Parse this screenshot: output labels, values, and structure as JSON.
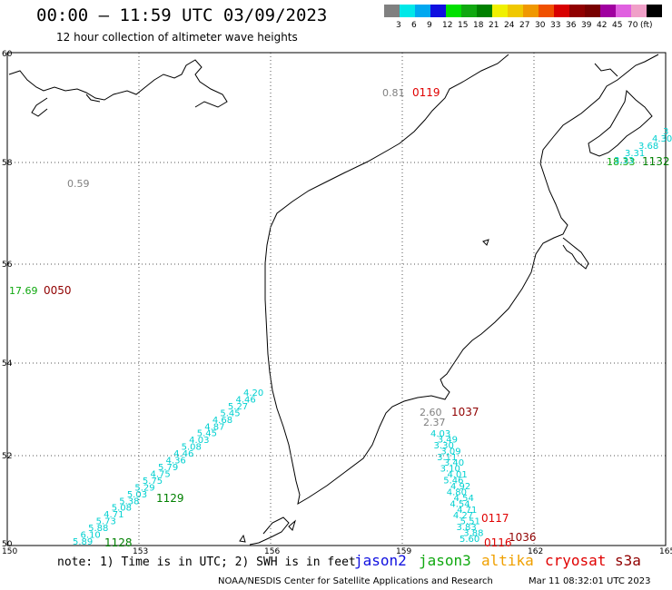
{
  "header": {
    "title": "00:00 – 11:59 UTC 03/09/2023",
    "subtitle": "12 hour collection of altimeter wave heights"
  },
  "legend": {
    "colors": [
      "#808080",
      "#00e8e8",
      "#00a8f0",
      "#1010e0",
      "#00e000",
      "#10a810",
      "#008000",
      "#f0f000",
      "#f0c800",
      "#f09800",
      "#f05000",
      "#d80000",
      "#900000",
      "#780000",
      "#a000a0",
      "#e060e0",
      "#f0a0c8",
      "#000000"
    ],
    "labels": [
      "3",
      "6",
      "9",
      "12",
      "15",
      "18",
      "21",
      "24",
      "27",
      "30",
      "33",
      "36",
      "39",
      "42",
      "45",
      "70",
      "(ft)"
    ]
  },
  "axes": {
    "lat_labels": [
      "60",
      "58",
      "56",
      "54",
      "52",
      "50"
    ],
    "lon_labels": [
      "150",
      "153",
      "156",
      "159",
      "162",
      "165"
    ]
  },
  "observations": [
    {
      "text": "0.81",
      "color": "#808080"
    },
    {
      "text": "0119",
      "color": "#e00000"
    },
    {
      "text": "0.59",
      "color": "#808080"
    },
    {
      "text": "17.69",
      "color": "#10a810"
    },
    {
      "text": "0050",
      "color": "#900000"
    },
    {
      "text": "18.33",
      "color": "#10a810"
    },
    {
      "text": "1132",
      "color": "#008000"
    },
    {
      "text": "1129",
      "color": "#008000"
    },
    {
      "text": "1128",
      "color": "#008000"
    },
    {
      "text": "1037",
      "color": "#900000"
    },
    {
      "text": "2.60",
      "color": "#808080"
    },
    {
      "text": "2.37",
      "color": "#808080"
    },
    {
      "text": "0117",
      "color": "#e00000"
    },
    {
      "text": "1036",
      "color": "#900000"
    },
    {
      "text": "0116",
      "color": "#e00000"
    }
  ],
  "tracks": {
    "track_1129": [
      "4.20",
      "4.46",
      "5.27",
      "5.45",
      "4.68",
      "4.87",
      "5.45",
      "4.03",
      "5.08",
      "4.46",
      "4.36",
      "5.79",
      "4.75",
      "5.75",
      "5.29",
      "5.03",
      "5.38",
      "5.08",
      "4.71",
      "5.73",
      "5.88",
      "6.10",
      "5.89"
    ],
    "track_1132": [
      "3",
      "4.30",
      "3.68",
      "3.31",
      "3.33"
    ],
    "track_1037": [
      "4.03",
      "3.49",
      "3.30",
      "3.09",
      "3.11",
      "3.40",
      "3.10",
      "4.01",
      "5.46",
      "4.92",
      "4.80",
      "4.54",
      "4.54",
      "4.71",
      "4.27",
      "5.51",
      "3.83",
      "3.88",
      "5.60"
    ]
  },
  "footer": {
    "note": "note: 1) Time is in UTC; 2) SWH is in feet",
    "satellites": [
      {
        "name": "jason2",
        "color": "#1010e0"
      },
      {
        "name": "jason3",
        "color": "#10a810"
      },
      {
        "name": "altika",
        "color": "#f0a000"
      },
      {
        "name": "cryosat",
        "color": "#e00000"
      },
      {
        "name": "s3a",
        "color": "#900000"
      }
    ],
    "credit": "NOAA/NESDIS Center for Satellite Applications and Research",
    "timestamp": "Mar 11 08:32:01 UTC 2023"
  }
}
